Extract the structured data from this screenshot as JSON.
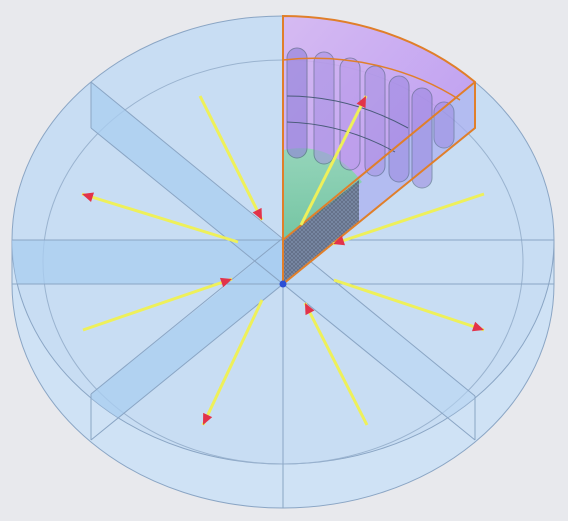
{
  "scene": {
    "colors": {
      "background": "#e8e9ed",
      "disk_fill": "#c9def4",
      "disk_edge": "#8aa5c4",
      "slab": "#a9cdf0",
      "sector_top": "#cfa8ee",
      "sector_outline": "#e07f2a",
      "sector_side": "#9fa8ee",
      "inner_region": "#7fd3a6",
      "arrow_shaft": "#eef05a",
      "arrow_head": "#e2334a",
      "center_point": "#2b4fd6"
    },
    "icons": {
      "arrow_marker": "arrowhead-icon",
      "center_marker": "origin-point-icon"
    },
    "symmetry": {
      "sector_count": 8,
      "shown_sector": 1
    }
  }
}
